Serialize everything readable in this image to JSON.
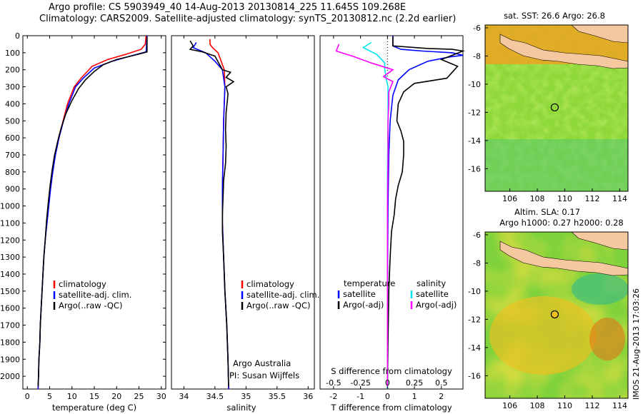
{
  "header": {
    "line1": "Argo profile: CS 5903949_40 14-Aug-2013 20130814_225 11.645S 109.268E",
    "line2": "Climatology: CARS2009. Satellite-adjusted climatology: synTS_20130812.nc (2.2d earlier)"
  },
  "colors": {
    "climatology": "#ff0000",
    "satellite": "#0000ff",
    "argo": "#000000",
    "sal_satellite": "#00e5ee",
    "sal_argo": "#ff00ff",
    "land": "#f5c8a0"
  },
  "chart_data": [
    {
      "type": "line",
      "name": "temperature-profile",
      "xlabel": "temperature (deg C)",
      "xlim": [
        -1,
        31
      ],
      "ylim": [
        2075,
        0
      ],
      "xticks": [
        "0",
        "5",
        "10",
        "15",
        "20",
        "25",
        "30"
      ],
      "xtick_values": [
        0,
        5,
        10,
        15,
        20,
        25,
        30
      ],
      "yticks": [
        "0",
        "100",
        "200",
        "300",
        "400",
        "500",
        "600",
        "700",
        "800",
        "900",
        "1000",
        "1100",
        "1200",
        "1300",
        "1400",
        "1500",
        "1600",
        "1700",
        "1800",
        "1900",
        "2000"
      ],
      "ytick_values": [
        0,
        100,
        200,
        300,
        400,
        500,
        600,
        700,
        800,
        900,
        1000,
        1100,
        1200,
        1300,
        1400,
        1500,
        1600,
        1700,
        1800,
        1900,
        2000
      ],
      "legend": [
        "climatology",
        "satellite-adj. clim.",
        "Argo(..raw -QC)"
      ],
      "series": [
        {
          "name": "climatology",
          "color": "#ff0000",
          "points": [
            [
              26.6,
              0
            ],
            [
              26.4,
              50
            ],
            [
              25.5,
              80
            ],
            [
              22,
              110
            ],
            [
              18,
              140
            ],
            [
              14.5,
              180
            ],
            [
              12,
              250
            ],
            [
              10.5,
              300
            ],
            [
              9,
              400
            ],
            [
              8,
              500
            ],
            [
              7,
              600
            ],
            [
              6.2,
              700
            ],
            [
              5.6,
              800
            ],
            [
              5.1,
              900
            ],
            [
              4.7,
              1000
            ],
            [
              4.3,
              1100
            ],
            [
              4.0,
              1200
            ],
            [
              3.7,
              1300
            ],
            [
              3.5,
              1400
            ],
            [
              3.3,
              1500
            ],
            [
              3.1,
              1600
            ],
            [
              2.9,
              1700
            ],
            [
              2.8,
              1800
            ],
            [
              2.6,
              1900
            ],
            [
              2.5,
              2000
            ],
            [
              2.4,
              2075
            ]
          ]
        },
        {
          "name": "satellite-adj. clim.",
          "color": "#0000ff",
          "points": [
            [
              26.8,
              0
            ],
            [
              26.7,
              50
            ],
            [
              26.6,
              95
            ],
            [
              23,
              120
            ],
            [
              19,
              150
            ],
            [
              15,
              190
            ],
            [
              12.5,
              250
            ],
            [
              10.8,
              300
            ],
            [
              9.3,
              400
            ],
            [
              8.1,
              500
            ],
            [
              7.1,
              600
            ],
            [
              6.3,
              700
            ],
            [
              5.7,
              800
            ],
            [
              5.2,
              900
            ],
            [
              4.8,
              1000
            ],
            [
              4.4,
              1100
            ],
            [
              4.0,
              1200
            ],
            [
              3.7,
              1300
            ],
            [
              3.5,
              1400
            ],
            [
              3.3,
              1500
            ],
            [
              3.1,
              1600
            ],
            [
              2.9,
              1700
            ],
            [
              2.8,
              1800
            ],
            [
              2.6,
              1900
            ],
            [
              2.5,
              2000
            ],
            [
              2.4,
              2075
            ]
          ]
        },
        {
          "name": "Argo(..raw -QC)",
          "color": "#000000",
          "points": [
            [
              26.8,
              5
            ],
            [
              26.8,
              95
            ],
            [
              24,
              115
            ],
            [
              20,
              140
            ],
            [
              17,
              170
            ],
            [
              15,
              210
            ],
            [
              13,
              260
            ],
            [
              11.5,
              310
            ],
            [
              10,
              380
            ],
            [
              8.6,
              460
            ],
            [
              7.6,
              540
            ],
            [
              6.8,
              620
            ],
            [
              6.1,
              700
            ],
            [
              5.6,
              780
            ],
            [
              5.1,
              880
            ],
            [
              4.7,
              980
            ],
            [
              4.3,
              1090
            ],
            [
              4.0,
              1200
            ],
            [
              3.7,
              1300
            ],
            [
              3.5,
              1400
            ],
            [
              3.3,
              1500
            ],
            [
              3.1,
              1600
            ],
            [
              2.9,
              1700
            ],
            [
              2.8,
              1800
            ],
            [
              2.6,
              1900
            ],
            [
              2.5,
              2000
            ],
            [
              2.4,
              2060
            ]
          ]
        }
      ]
    },
    {
      "type": "line",
      "name": "salinity-profile",
      "xlabel": "salinity",
      "xlim": [
        33.8,
        36.1
      ],
      "ylim": [
        2075,
        0
      ],
      "xticks": [
        "34",
        "34.5",
        "35",
        "35.5",
        "36"
      ],
      "xtick_values": [
        34,
        34.5,
        35,
        35.5,
        36
      ],
      "legend": [
        "climatology",
        "satellite-adj. clim.",
        "Argo(..raw -QC)"
      ],
      "annotation": [
        "Argo Australia",
        "PI: Susan Wijffels"
      ],
      "series": [
        {
          "name": "climatology",
          "color": "#ff0000",
          "points": [
            [
              34.42,
              20
            ],
            [
              34.42,
              50
            ],
            [
              34.46,
              70
            ],
            [
              34.55,
              100
            ],
            [
              34.6,
              150
            ],
            [
              34.65,
              200
            ],
            [
              34.66,
              300
            ],
            [
              34.64,
              500
            ],
            [
              34.63,
              700
            ],
            [
              34.62,
              900
            ],
            [
              34.62,
              1100
            ],
            [
              34.64,
              1300
            ],
            [
              34.66,
              1500
            ],
            [
              34.69,
              1700
            ],
            [
              34.71,
              1900
            ],
            [
              34.72,
              2075
            ]
          ]
        },
        {
          "name": "satellite-adj. clim.",
          "color": "#0000ff",
          "points": [
            [
              34.2,
              40
            ],
            [
              34.15,
              70
            ],
            [
              34.35,
              100
            ],
            [
              34.5,
              150
            ],
            [
              34.62,
              200
            ],
            [
              34.66,
              300
            ],
            [
              34.64,
              500
            ],
            [
              34.63,
              700
            ],
            [
              34.62,
              900
            ],
            [
              34.62,
              1100
            ],
            [
              34.64,
              1300
            ],
            [
              34.66,
              1500
            ],
            [
              34.69,
              1700
            ],
            [
              34.71,
              1900
            ],
            [
              34.72,
              2075
            ]
          ]
        },
        {
          "name": "Argo(..raw -QC)",
          "color": "#000000",
          "points": [
            [
              34.1,
              30
            ],
            [
              34.15,
              60
            ],
            [
              34.1,
              80
            ],
            [
              34.3,
              95
            ],
            [
              34.5,
              120
            ],
            [
              34.62,
              200
            ],
            [
              34.75,
              215
            ],
            [
              34.68,
              245
            ],
            [
              34.8,
              270
            ],
            [
              34.68,
              300
            ],
            [
              34.71,
              340
            ],
            [
              34.7,
              380
            ],
            [
              34.68,
              450
            ],
            [
              34.67,
              550
            ],
            [
              34.68,
              650
            ],
            [
              34.67,
              750
            ],
            [
              34.64,
              850
            ],
            [
              34.63,
              950
            ],
            [
              34.62,
              1050
            ],
            [
              34.62,
              1150
            ],
            [
              34.64,
              1300
            ],
            [
              34.66,
              1500
            ],
            [
              34.69,
              1700
            ],
            [
              34.71,
              1900
            ],
            [
              34.72,
              2060
            ]
          ]
        }
      ]
    },
    {
      "type": "line",
      "name": "difference-profile",
      "xlabel": "T difference from climatology",
      "xlabel_top": "S difference from climatology",
      "xlim": [
        -2.5,
        2.8
      ],
      "ylim": [
        2075,
        0
      ],
      "xticks": [
        "-2",
        "-1",
        "0",
        "1",
        "2"
      ],
      "xtick_values": [
        -2,
        -1,
        0,
        1,
        2
      ],
      "s_ticks": [
        "-0.5",
        "-0.25",
        "0",
        "0.25",
        "0.5"
      ],
      "s_tick_values": [
        -0.5,
        -0.25,
        0,
        0.25,
        0.5
      ],
      "legend_temperature_title": "temperature",
      "legend_salinity_title": "salinity",
      "legend_temperature": [
        "satellite",
        "Argo(-adj)"
      ],
      "legend_salinity": [
        "satellite",
        "Argo(-adj)"
      ],
      "series": [
        {
          "name": "T satellite",
          "color": "#0000ff",
          "points": [
            [
              0.2,
              0
            ],
            [
              0.2,
              60
            ],
            [
              0.5,
              80
            ],
            [
              1.3,
              90
            ],
            [
              2.4,
              100
            ],
            [
              2.8,
              115
            ],
            [
              2.3,
              125
            ],
            [
              1.5,
              150
            ],
            [
              0.8,
              200
            ],
            [
              0.4,
              260
            ],
            [
              0.2,
              350
            ],
            [
              0.1,
              500
            ],
            [
              0.05,
              700
            ],
            [
              0.02,
              1000
            ],
            [
              0,
              1500
            ],
            [
              0,
              2075
            ]
          ]
        },
        {
          "name": "T Argo(-adj)",
          "color": "#000000",
          "points": [
            [
              0.2,
              5
            ],
            [
              0.2,
              60
            ],
            [
              1.5,
              75
            ],
            [
              2.4,
              80
            ],
            [
              2.8,
              90
            ],
            [
              2.0,
              140
            ],
            [
              2.6,
              180
            ],
            [
              2.2,
              250
            ],
            [
              1.0,
              280
            ],
            [
              0.6,
              330
            ],
            [
              0.4,
              400
            ],
            [
              0.35,
              500
            ],
            [
              0.5,
              560
            ],
            [
              0.6,
              620
            ],
            [
              0.6,
              700
            ],
            [
              0.55,
              800
            ],
            [
              0.4,
              880
            ],
            [
              0.3,
              960
            ],
            [
              0.25,
              1050
            ],
            [
              0.15,
              1150
            ],
            [
              0.1,
              1300
            ],
            [
              0.05,
              1500
            ],
            [
              0.02,
              1800
            ],
            [
              0,
              2060
            ]
          ]
        },
        {
          "name": "S satellite",
          "color": "#00e5ee",
          "points": [
            [
              -0.6,
              40
            ],
            [
              -0.9,
              70
            ],
            [
              -0.4,
              110
            ],
            [
              -0.1,
              160
            ],
            [
              -0.1,
              200
            ],
            [
              -0.05,
              250
            ],
            [
              0.02,
              300
            ],
            [
              0.02,
              500
            ],
            [
              0,
              800
            ],
            [
              0,
              1200
            ],
            [
              0,
              1600
            ],
            [
              0,
              2075
            ]
          ]
        },
        {
          "name": "S Argo(-adj)",
          "color": "#ff00ff",
          "points": [
            [
              -1.8,
              50
            ],
            [
              -1.9,
              90
            ],
            [
              -1.3,
              120
            ],
            [
              -0.6,
              160
            ],
            [
              0.2,
              200
            ],
            [
              -0.15,
              240
            ],
            [
              0.2,
              270
            ],
            [
              0.05,
              330
            ],
            [
              0.05,
              400
            ],
            [
              0.02,
              500
            ],
            [
              0.02,
              700
            ],
            [
              0,
              1000
            ],
            [
              0,
              1500
            ],
            [
              0,
              2060
            ]
          ]
        }
      ]
    },
    {
      "type": "heatmap",
      "name": "sst-map",
      "title": "sat. SST: 26.6  Argo: 26.8",
      "xticks": [
        "106",
        "108",
        "110",
        "112",
        "114"
      ],
      "xtick_values": [
        106,
        108,
        110,
        112,
        114
      ],
      "yticks": [
        "-6",
        "-8",
        "-10",
        "-12",
        "-14",
        "-16"
      ],
      "ytick_values": [
        -6,
        -8,
        -10,
        -12,
        -14,
        -16
      ],
      "xlim": [
        104.2,
        114.6
      ],
      "ylim": [
        -17.6,
        -5.8
      ],
      "marker": [
        109.268,
        -11.645
      ]
    },
    {
      "type": "heatmap",
      "name": "sla-map",
      "title_lines": [
        "Altim. SLA: 0.17",
        "Argo h1000: 0.27 h2000: 0.28"
      ],
      "xticks": [
        "106",
        "108",
        "110",
        "112",
        "114"
      ],
      "xtick_values": [
        106,
        108,
        110,
        112,
        114
      ],
      "yticks": [
        "-6",
        "-8",
        "-10",
        "-12",
        "-14",
        "-16"
      ],
      "ytick_values": [
        -6,
        -8,
        -10,
        -12,
        -14,
        -16
      ],
      "xlim": [
        104.2,
        114.6
      ],
      "ylim": [
        -17.6,
        -5.8
      ],
      "marker": [
        109.268,
        -11.645
      ]
    }
  ],
  "footer": {
    "stamp": "IMOS 21-Aug-2013 17:03:26"
  }
}
